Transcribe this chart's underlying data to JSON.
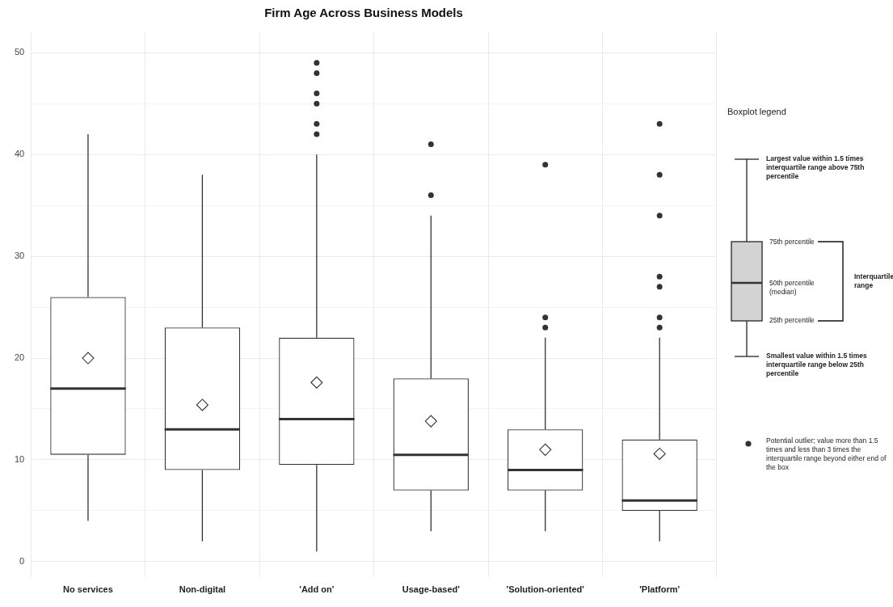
{
  "chart_data": {
    "type": "box",
    "title": "Firm Age Across Business Models",
    "categories": [
      "No services",
      "Non-digital",
      "'Add on'",
      "Usage-based'",
      "'Solution-oriented'",
      "'Platform'"
    ],
    "boxes": [
      {
        "low": 4,
        "q1": 10.5,
        "median": 17,
        "q3": 26,
        "high": 42,
        "mean": 20
      },
      {
        "low": 2,
        "q1": 9,
        "median": 13,
        "q3": 23,
        "high": 38,
        "mean": 15.4
      },
      {
        "low": 1,
        "q1": 9.5,
        "median": 14,
        "q3": 22,
        "high": 40,
        "mean": 17.6,
        "outliers": [
          42,
          43,
          45,
          46,
          48,
          49
        ]
      },
      {
        "low": 3,
        "q1": 7,
        "median": 10.5,
        "q3": 18,
        "high": 34,
        "mean": 13.8,
        "outliers": [
          36,
          41
        ]
      },
      {
        "low": 3,
        "q1": 7,
        "median": 9,
        "q3": 13,
        "high": 22,
        "mean": 11,
        "outliers": [
          23,
          24,
          39
        ]
      },
      {
        "low": 2,
        "q1": 5,
        "median": 6,
        "q3": 12,
        "high": 22,
        "mean": 10.6,
        "outliers": [
          23,
          24,
          27,
          28,
          34,
          38,
          43
        ]
      }
    ],
    "color": "#333333",
    "ylim": [
      -1.5,
      52
    ],
    "yticks": [
      0,
      {
        "value": 5,
        "label": null
      },
      10,
      {
        "value": 15,
        "label": null
      },
      20,
      {
        "value": 25,
        "label": null
      },
      30,
      {
        "value": 35,
        "label": null
      },
      40,
      {
        "value": 45,
        "label": null
      },
      50
    ],
    "grid": true,
    "annotations": [
      "Boxplot legend",
      "Largest value within 1.5 times interquartile range above 75th percentile",
      "75th percentile",
      "50th percentile (median)",
      "25th percentile",
      "Interquartile range",
      "Smallest value within 1.5 times interquartile range below 25th percentile",
      "Potential outlier; value more than 1.5 times and less than 3 times the interquartile range beyond either end of the box"
    ]
  }
}
